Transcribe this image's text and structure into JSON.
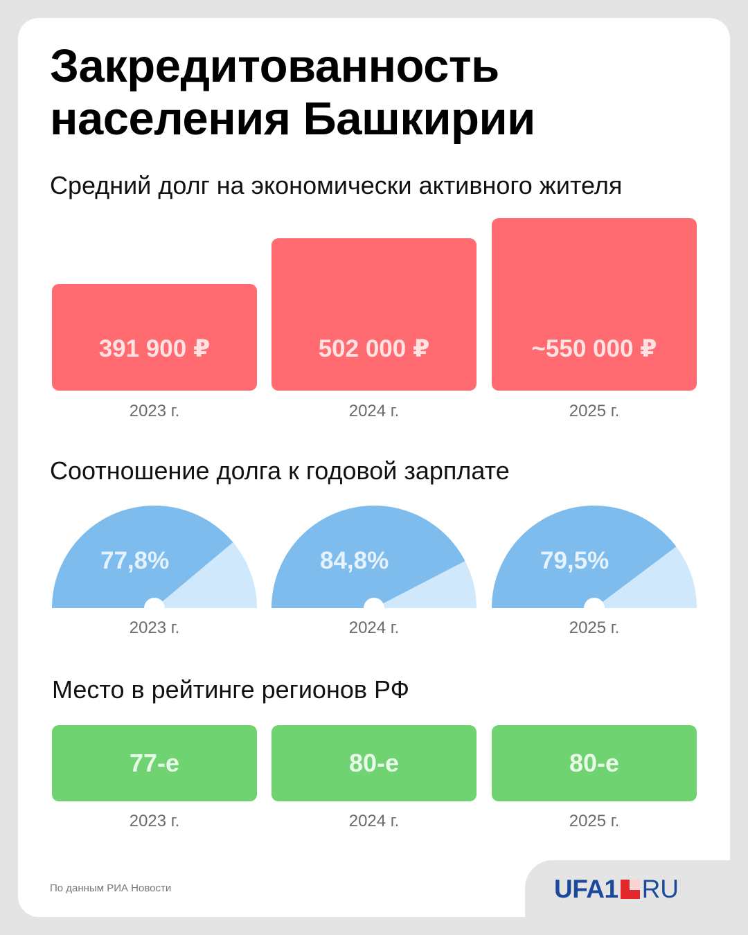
{
  "title_line1": "Закредитованность",
  "title_line2": "населения Башкирии",
  "debt": {
    "title": "Средний долг на экономически активного жителя",
    "color": "#ff6b70"
  },
  "ratio": {
    "title": "Соотношение долга к годовой зарплате",
    "fill_color": "#7dbcec",
    "track_color": "#d0e8fb"
  },
  "rank": {
    "title": "Место в рейтинге регионов РФ",
    "color": "#6fd372"
  },
  "source": "По данным РИА Новости",
  "logo": {
    "main": "UFA1",
    "suffix": "RU"
  },
  "chart_data": [
    {
      "type": "bar",
      "title": "Средний долг на экономически активного жителя",
      "categories": [
        "2023 г.",
        "2024 г.",
        "2025 г."
      ],
      "values": [
        391900,
        502000,
        550000
      ],
      "labels": [
        "391 900 ₽",
        "502 000 ₽",
        "~550 000 ₽"
      ]
    },
    {
      "type": "gauge",
      "title": "Соотношение долга к годовой зарплате",
      "categories": [
        "2023 г.",
        "2024 г.",
        "2025 г."
      ],
      "values": [
        77.8,
        84.8,
        79.5
      ],
      "labels": [
        "77,8%",
        "84,8%",
        "79,5%"
      ]
    },
    {
      "type": "table",
      "title": "Место в рейтинге регионов РФ",
      "categories": [
        "2023 г.",
        "2024 г.",
        "2025 г."
      ],
      "values": [
        77,
        80,
        80
      ],
      "labels": [
        "77-е",
        "80-е",
        "80-е"
      ]
    }
  ]
}
